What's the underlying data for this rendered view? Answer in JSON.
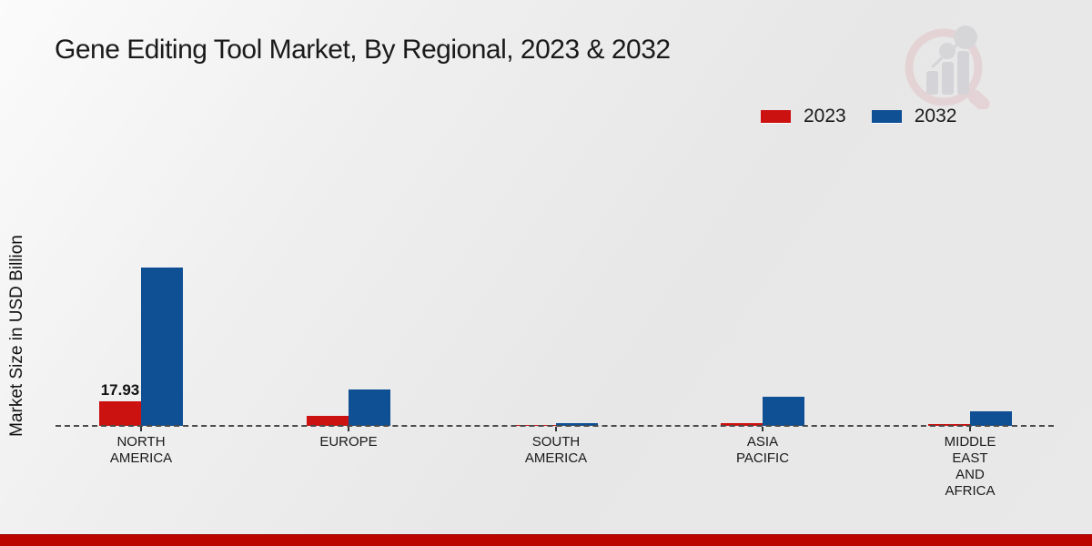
{
  "title": "Gene Editing Tool Market, By Regional, 2023 & 2032",
  "y_axis_label": "Market Size in USD Billion",
  "colors": {
    "series_2023": "#cc1111",
    "series_2032": "#0f4f94",
    "footer_strip": "#bb0400",
    "baseline_dash": "#4a4a4a",
    "background": "#ebebeb"
  },
  "legend": {
    "position": "top-right",
    "items": [
      {
        "label": "2023",
        "color": "#cc1111"
      },
      {
        "label": "2032",
        "color": "#0f4f94"
      }
    ]
  },
  "watermark": "market-research-future-logo",
  "chart_data": {
    "type": "bar",
    "title": "Gene Editing Tool Market, By Regional, 2023 & 2032",
    "ylabel": "Market Size in USD Billion",
    "xlabel": "",
    "categories": [
      "NORTH AMERICA",
      "EUROPE",
      "SOUTH AMERICA",
      "ASIA PACIFIC",
      "MIDDLE EAST AND AFRICA"
    ],
    "category_label_lines": [
      [
        "NORTH",
        "AMERICA"
      ],
      [
        "EUROPE"
      ],
      [
        "SOUTH",
        "AMERICA"
      ],
      [
        "ASIA",
        "PACIFIC"
      ],
      [
        "MIDDLE",
        "EAST",
        "AND",
        "AFRICA"
      ]
    ],
    "series": [
      {
        "name": "2023",
        "color": "#cc1111",
        "values": [
          17.93,
          7.4,
          0.9,
          1.9,
          1.6
        ],
        "value_labels": [
          "17.93",
          "",
          "",
          "",
          ""
        ]
      },
      {
        "name": "2032",
        "color": "#0f4f94",
        "values": [
          117.3,
          27.0,
          1.9,
          21.6,
          10.9
        ],
        "value_labels": [
          "",
          "",
          "",
          "",
          ""
        ]
      }
    ],
    "axis": {
      "y_axis_ticks_visible": false,
      "grid": false,
      "baseline_style": "dashed"
    },
    "legend_position": "top-right"
  }
}
